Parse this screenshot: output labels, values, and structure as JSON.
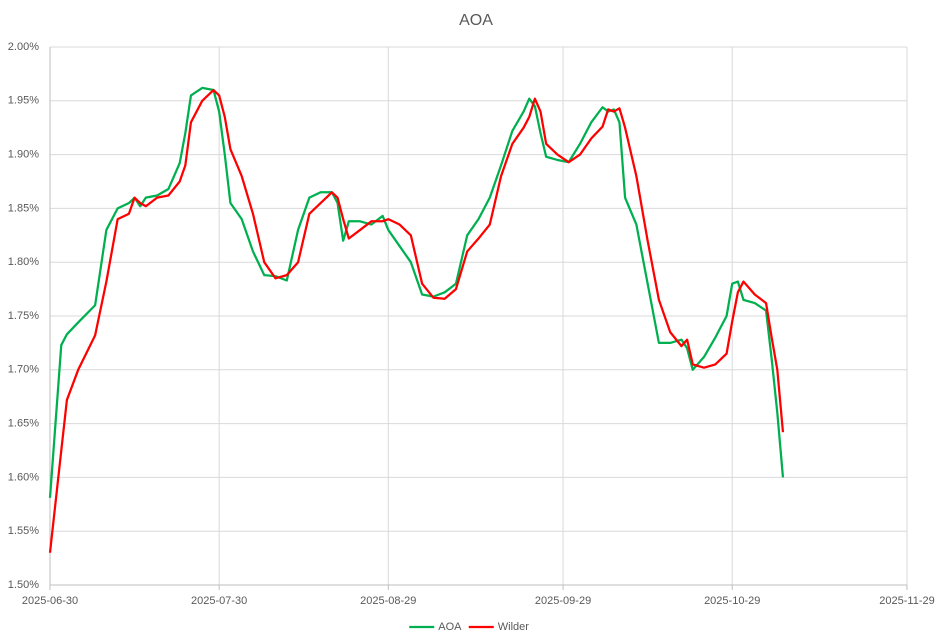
{
  "chart_data": {
    "type": "line",
    "title": "AOA",
    "x": [
      "2025-06-30",
      "2025-07-02",
      "2025-07-03",
      "2025-07-05",
      "2025-07-08",
      "2025-07-10",
      "2025-07-12",
      "2025-07-14",
      "2025-07-15",
      "2025-07-16",
      "2025-07-17",
      "2025-07-19",
      "2025-07-21",
      "2025-07-23",
      "2025-07-24",
      "2025-07-25",
      "2025-07-27",
      "2025-07-29",
      "2025-07-30",
      "2025-07-31",
      "2025-08-01",
      "2025-08-03",
      "2025-08-05",
      "2025-08-07",
      "2025-08-09",
      "2025-08-11",
      "2025-08-13",
      "2025-08-15",
      "2025-08-17",
      "2025-08-19",
      "2025-08-20",
      "2025-08-21",
      "2025-08-22",
      "2025-08-24",
      "2025-08-26",
      "2025-08-28",
      "2025-08-29",
      "2025-08-31",
      "2025-09-02",
      "2025-09-04",
      "2025-09-06",
      "2025-09-08",
      "2025-09-10",
      "2025-09-12",
      "2025-09-14",
      "2025-09-16",
      "2025-09-18",
      "2025-09-20",
      "2025-09-22",
      "2025-09-23",
      "2025-09-24",
      "2025-09-25",
      "2025-09-26",
      "2025-09-28",
      "2025-09-30",
      "2025-10-02",
      "2025-10-04",
      "2025-10-06",
      "2025-10-07",
      "2025-10-08",
      "2025-10-09",
      "2025-10-10",
      "2025-10-12",
      "2025-10-14",
      "2025-10-16",
      "2025-10-18",
      "2025-10-20",
      "2025-10-21",
      "2025-10-22",
      "2025-10-24",
      "2025-10-26",
      "2025-10-28",
      "2025-10-29",
      "2025-10-30",
      "2025-10-31",
      "2025-11-02",
      "2025-11-04",
      "2025-11-05",
      "2025-11-06",
      "2025-11-07"
    ],
    "series": [
      {
        "name": "AOA",
        "color": "#00b050",
        "values": [
          1.581,
          1.723,
          1.733,
          1.744,
          1.76,
          1.83,
          1.85,
          1.855,
          1.86,
          1.852,
          1.86,
          1.862,
          1.868,
          1.892,
          1.92,
          1.955,
          1.962,
          1.96,
          1.94,
          1.9,
          1.855,
          1.84,
          1.81,
          1.788,
          1.787,
          1.783,
          1.83,
          1.86,
          1.865,
          1.865,
          1.855,
          1.82,
          1.838,
          1.838,
          1.835,
          1.843,
          1.83,
          1.815,
          1.8,
          1.77,
          1.768,
          1.772,
          1.78,
          1.825,
          1.84,
          1.86,
          1.89,
          1.922,
          1.94,
          1.952,
          1.945,
          1.92,
          1.898,
          1.895,
          1.893,
          1.91,
          1.93,
          1.944,
          1.94,
          1.942,
          1.93,
          1.86,
          1.835,
          1.78,
          1.725,
          1.725,
          1.728,
          1.72,
          1.7,
          1.712,
          1.73,
          1.75,
          1.78,
          1.782,
          1.765,
          1.762,
          1.755,
          1.71,
          1.66,
          1.6
        ]
      },
      {
        "name": "Wilder",
        "color": "#ff0000",
        "values": [
          1.53,
          1.625,
          1.672,
          1.7,
          1.732,
          1.782,
          1.84,
          1.845,
          1.86,
          1.855,
          1.852,
          1.86,
          1.862,
          1.875,
          1.89,
          1.93,
          1.95,
          1.96,
          1.955,
          1.935,
          1.905,
          1.88,
          1.845,
          1.8,
          1.785,
          1.788,
          1.8,
          1.845,
          1.855,
          1.865,
          1.86,
          1.84,
          1.822,
          1.83,
          1.838,
          1.838,
          1.84,
          1.835,
          1.825,
          1.78,
          1.767,
          1.766,
          1.775,
          1.81,
          1.822,
          1.835,
          1.88,
          1.91,
          1.925,
          1.935,
          1.952,
          1.94,
          1.91,
          1.9,
          1.893,
          1.9,
          1.915,
          1.926,
          1.942,
          1.94,
          1.943,
          1.925,
          1.88,
          1.82,
          1.765,
          1.735,
          1.722,
          1.728,
          1.705,
          1.702,
          1.705,
          1.715,
          1.745,
          1.772,
          1.782,
          1.77,
          1.762,
          1.73,
          1.7,
          1.642
        ]
      }
    ],
    "xlim": [
      "2025-06-30",
      "2025-11-29"
    ],
    "xticks": [
      "2025-06-30",
      "2025-07-30",
      "2025-08-29",
      "2025-09-29",
      "2025-10-29",
      "2025-11-29"
    ],
    "ylim": [
      1.5,
      2.0
    ],
    "yticks": [
      {
        "value": 1.5,
        "label": "1.50%"
      },
      {
        "value": 1.55,
        "label": "1.55%"
      },
      {
        "value": 1.6,
        "label": "1.60%"
      },
      {
        "value": 1.65,
        "label": "1.65%"
      },
      {
        "value": 1.7,
        "label": "1.70%"
      },
      {
        "value": 1.75,
        "label": "1.75%"
      },
      {
        "value": 1.8,
        "label": "1.80%"
      },
      {
        "value": 1.85,
        "label": "1.85%"
      },
      {
        "value": 1.9,
        "label": "1.90%"
      },
      {
        "value": 1.95,
        "label": "1.95%"
      },
      {
        "value": 2.0,
        "label": "2.00%"
      }
    ],
    "grid": true,
    "legend": "bottom"
  }
}
